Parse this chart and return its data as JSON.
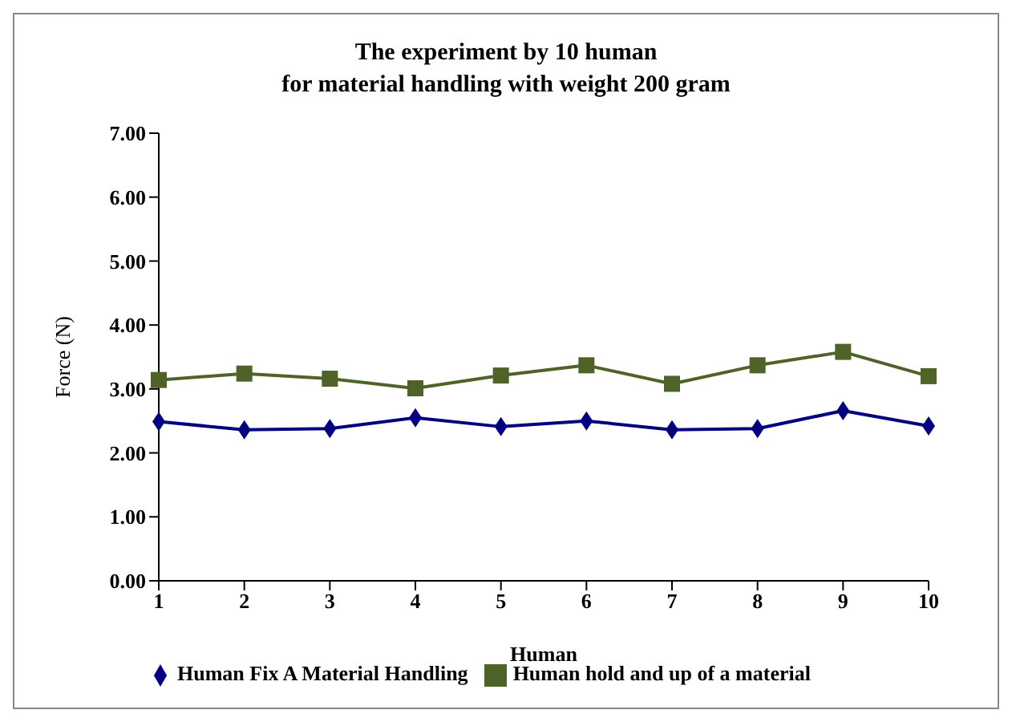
{
  "chart_data": {
    "type": "line",
    "title": "The experiment by 10 human\nfor material handling with weight 200 gram",
    "xlabel": "Human",
    "ylabel": "Force (N)",
    "categories": [
      "1",
      "2",
      "3",
      "4",
      "5",
      "6",
      "7",
      "8",
      "9",
      "10"
    ],
    "series": [
      {
        "name": "Human Fix A  Material Handling",
        "color": "#000080",
        "marker": "diamond",
        "values": [
          2.49,
          2.36,
          2.38,
          2.55,
          2.41,
          2.5,
          2.36,
          2.38,
          2.66,
          2.42
        ]
      },
      {
        "name": "Human hold and up of a material",
        "color": "#4f6228",
        "marker": "square",
        "values": [
          3.14,
          3.24,
          3.16,
          3.01,
          3.21,
          3.37,
          3.08,
          3.37,
          3.58,
          3.2
        ]
      }
    ],
    "ylim": [
      0,
      7
    ],
    "yticks": [
      {
        "value": 0,
        "label": "0.00"
      },
      {
        "value": 1,
        "label": "1.00"
      },
      {
        "value": 2,
        "label": "2.00"
      },
      {
        "value": 3,
        "label": "3.00"
      },
      {
        "value": 4,
        "label": "4.00"
      },
      {
        "value": 5,
        "label": "5.00"
      },
      {
        "value": 6,
        "label": "6.00"
      },
      {
        "value": 7,
        "label": "7.00"
      }
    ],
    "grid": false,
    "legend": "bottom"
  }
}
